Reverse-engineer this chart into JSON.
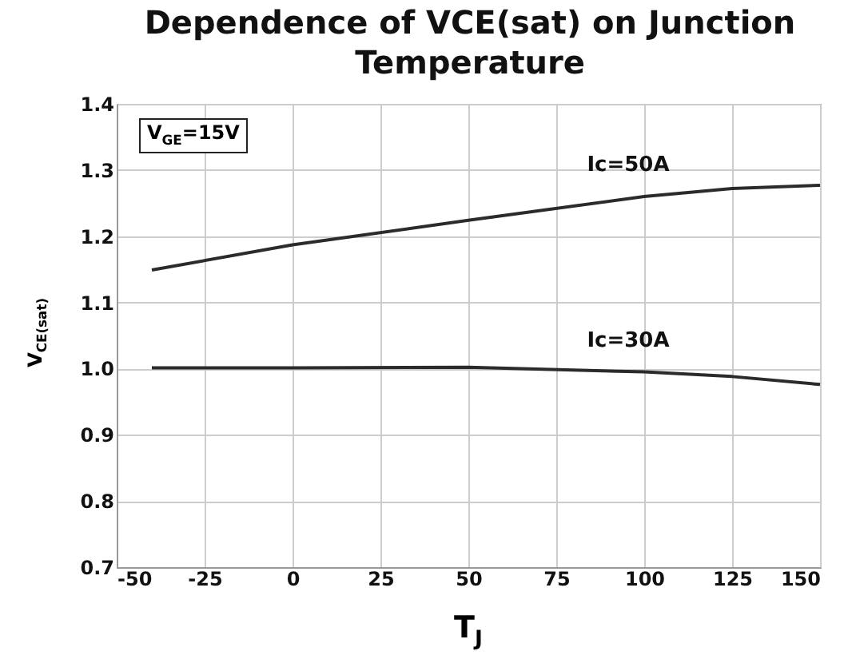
{
  "chart_data": {
    "type": "line",
    "title": "Dependence of VCE(sat) on Junction Temperature",
    "xlabel": "T$_{J}$",
    "ylabel": "V$_{CE(sat)}$",
    "annotations": [
      "V$_{GE}$=15V"
    ],
    "x": [
      -40,
      0,
      50,
      100,
      125,
      150
    ],
    "series": [
      {
        "name": "Ic=50A",
        "color": "#2b2b2b",
        "values": [
          1.149,
          1.187,
          1.224,
          1.26,
          1.272,
          1.277
        ]
      },
      {
        "name": "Ic=30A",
        "color": "#2b2b2b",
        "values": [
          1.001,
          1.001,
          1.002,
          0.995,
          0.988,
          0.976
        ]
      }
    ],
    "xlim": [
      -50,
      150
    ],
    "xticks": [
      -50,
      -25,
      0,
      25,
      50,
      75,
      100,
      125,
      150
    ],
    "ylim": [
      0.7,
      1.4
    ],
    "yticks": [
      {
        "value": 0.7,
        "label": "0.7"
      },
      {
        "value": 0.8,
        "label": "0.8"
      },
      {
        "value": 0.9,
        "label": "0.9"
      },
      {
        "value": 1.0,
        "label": "1.0"
      },
      {
        "value": 1.1,
        "label": "1.1"
      },
      {
        "value": 1.2,
        "label": "1.2"
      },
      {
        "value": 1.3,
        "label": "1.3"
      },
      {
        "value": 1.4,
        "label": "1.4"
      }
    ],
    "grid": true,
    "legend": false,
    "marker": "none",
    "line_style": "solid"
  }
}
